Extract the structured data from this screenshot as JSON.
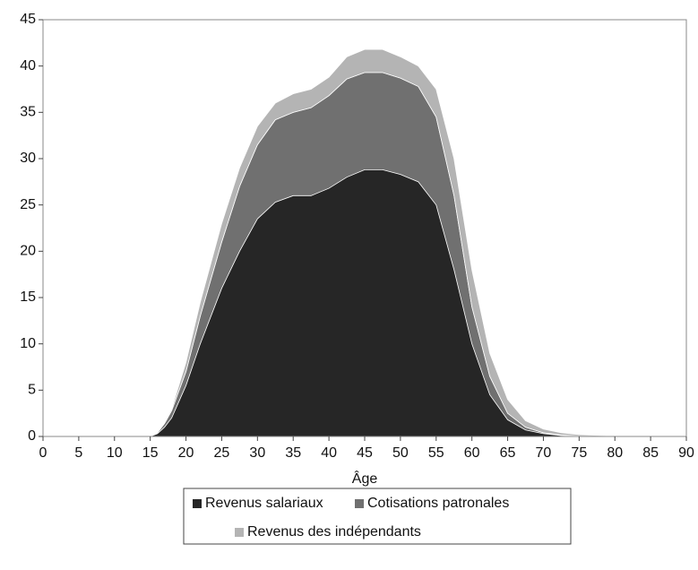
{
  "chart_data": {
    "type": "stacked_area",
    "xlabel": "Âge",
    "x": [
      0,
      5,
      10,
      14,
      15,
      16,
      17,
      18,
      20,
      22,
      25,
      27.5,
      30,
      32.5,
      35,
      37.5,
      40,
      42.5,
      45,
      47.5,
      50,
      52.5,
      55,
      57.5,
      60,
      62.5,
      65,
      67.5,
      70,
      72.5,
      75,
      80,
      85,
      90
    ],
    "series": [
      {
        "name": "Revenus salariaux",
        "color": "#262626",
        "values": [
          0,
          0,
          0,
          0,
          0,
          0.3,
          1,
          2,
          5.5,
          10,
          16,
          20,
          23.5,
          25.3,
          26,
          26,
          26.8,
          28,
          28.8,
          28.8,
          28.3,
          27.5,
          25,
          18,
          10,
          4.5,
          1.8,
          0.7,
          0.3,
          0.1,
          0.05,
          0,
          0,
          0
        ]
      },
      {
        "name": "Cotisations patronales",
        "color": "#707070",
        "values": [
          0,
          0,
          0,
          0,
          0,
          0.1,
          0.4,
          0.8,
          1.5,
          3,
          5,
          7,
          8,
          8.9,
          9,
          9.5,
          10,
          10.6,
          10.5,
          10.5,
          10.4,
          10.3,
          9.5,
          8,
          4,
          2,
          0.7,
          0.3,
          0.1,
          0.05,
          0,
          0,
          0,
          0
        ]
      },
      {
        "name": "Revenus des indépendants",
        "color": "#b4b4b4",
        "values": [
          0,
          0,
          0,
          0,
          0,
          0.05,
          0.1,
          0.2,
          1,
          1.5,
          2,
          2,
          2,
          1.8,
          2,
          2,
          2,
          2.4,
          2.5,
          2.5,
          2.3,
          2.2,
          3,
          4,
          4,
          2.5,
          1.5,
          0.7,
          0.4,
          0.25,
          0.15,
          0.05,
          0,
          0
        ]
      }
    ],
    "xlim": [
      0,
      90
    ],
    "xticks": [
      0,
      5,
      10,
      15,
      20,
      25,
      30,
      35,
      40,
      45,
      50,
      55,
      60,
      65,
      70,
      75,
      80,
      85,
      90
    ],
    "ylim": [
      0,
      45
    ],
    "yticks": [
      0,
      5,
      10,
      15,
      20,
      25,
      30,
      35,
      40,
      45
    ],
    "legend": "bottom"
  }
}
